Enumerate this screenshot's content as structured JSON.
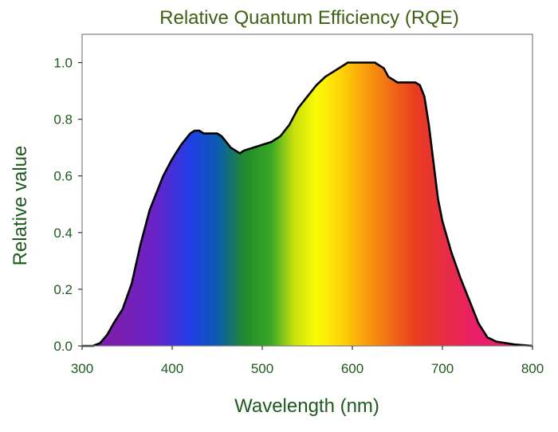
{
  "chart_data": {
    "type": "area",
    "title": "Relative Quantum Efficiency (RQE)",
    "xlabel": "Wavelength (nm)",
    "ylabel": "Relative value",
    "xlim": [
      300,
      800
    ],
    "ylim": [
      0,
      1.1
    ],
    "xticks": [
      "300",
      "400",
      "500",
      "600",
      "700",
      "800"
    ],
    "yticks": [
      "0.0",
      "0.2",
      "0.4",
      "0.6",
      "0.8",
      "1.0"
    ],
    "grid": false,
    "legend": "none",
    "fill": "visible spectrum gradient (violet to red) under the curve",
    "series": [
      {
        "x": [
          300,
          312,
          320,
          328,
          335,
          345,
          355,
          365,
          375,
          390,
          400,
          410,
          420,
          425,
          430,
          435,
          440,
          450,
          455,
          460,
          465,
          470,
          475,
          480,
          490,
          500,
          510,
          520,
          530,
          540,
          550,
          560,
          570,
          580,
          590,
          595,
          600,
          610,
          620,
          625,
          630,
          635,
          640,
          650,
          660,
          670,
          675,
          680,
          685,
          690,
          695,
          700,
          710,
          720,
          730,
          740,
          750,
          760,
          780,
          800
        ],
        "y": [
          0.0,
          0.0,
          0.01,
          0.04,
          0.08,
          0.13,
          0.22,
          0.36,
          0.48,
          0.6,
          0.66,
          0.71,
          0.75,
          0.76,
          0.76,
          0.75,
          0.75,
          0.75,
          0.74,
          0.72,
          0.7,
          0.69,
          0.68,
          0.69,
          0.7,
          0.71,
          0.72,
          0.74,
          0.78,
          0.84,
          0.88,
          0.92,
          0.95,
          0.97,
          0.99,
          1.0,
          1.0,
          1.0,
          1.0,
          1.0,
          0.99,
          0.98,
          0.95,
          0.93,
          0.93,
          0.93,
          0.92,
          0.88,
          0.78,
          0.65,
          0.52,
          0.44,
          0.33,
          0.24,
          0.16,
          0.08,
          0.03,
          0.015,
          0.005,
          0.0
        ]
      }
    ],
    "gradient_stops": [
      {
        "x": 340,
        "color": "#7a1fb0"
      },
      {
        "x": 380,
        "color": "#6a22c8"
      },
      {
        "x": 420,
        "color": "#1f3ee6"
      },
      {
        "x": 450,
        "color": "#0b5bb0"
      },
      {
        "x": 480,
        "color": "#1f8a2e"
      },
      {
        "x": 510,
        "color": "#39a824"
      },
      {
        "x": 535,
        "color": "#c6df0d"
      },
      {
        "x": 560,
        "color": "#fbfb05"
      },
      {
        "x": 590,
        "color": "#fdd007"
      },
      {
        "x": 610,
        "color": "#fba50b"
      },
      {
        "x": 640,
        "color": "#f27015"
      },
      {
        "x": 670,
        "color": "#e83d1e"
      },
      {
        "x": 700,
        "color": "#e72e40"
      },
      {
        "x": 740,
        "color": "#e81e6c"
      }
    ],
    "colors": {
      "title": "#3f5f14",
      "axis_text": "#1e5a1e",
      "curve": "#000000",
      "frame": "#7f7f7f"
    }
  }
}
